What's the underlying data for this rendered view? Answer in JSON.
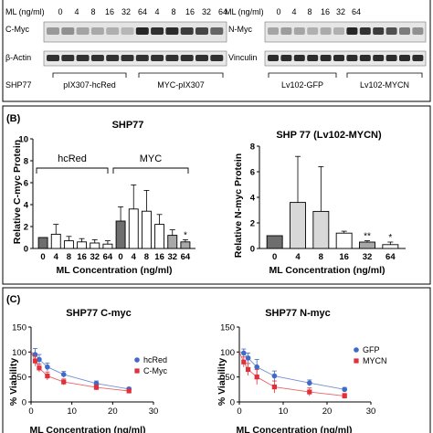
{
  "panels": {
    "A": {
      "left_blot": {
        "concentration_label": "ML (ng/ml)",
        "concentrations": [
          "0",
          "4",
          "8",
          "16",
          "32",
          "64"
        ],
        "rows": [
          "C-Myc",
          "β-Actin"
        ],
        "cell_line": "SHP77",
        "groups": [
          "pIX307-hcRed",
          "MYC-pIX307"
        ]
      },
      "right_blot": {
        "concentration_label": "ML (ng/ml)",
        "concentrations": [
          "0",
          "4",
          "8",
          "16",
          "32",
          "64"
        ],
        "rows": [
          "N-Myc",
          "Vinculin"
        ],
        "groups": [
          "Lv102-GFP",
          "Lv102-MYCN"
        ]
      }
    },
    "B": {
      "label": "(B)",
      "left_brackets": [
        "hcRed",
        "MYC"
      ],
      "right_title": "SHP 77 (Lv102-MYCN)"
    },
    "C": {
      "label": "(C)"
    }
  },
  "colors": {
    "bar_white": "#ffffff",
    "bar_light_gray": "#d8d8d8",
    "bar_mid_gray": "#a8a8a8",
    "bar_dark_gray": "#6e6e6e",
    "blue": "#4169c8",
    "red": "#e0303a"
  },
  "chart_data": [
    {
      "type": "bar",
      "title": "SHP77",
      "xlabel": "ML Concentration (ng/ml)",
      "ylabel": "Relative C-myc Protein",
      "ylim": [
        0,
        10
      ],
      "yticks": [
        0,
        2,
        4,
        6,
        8,
        10
      ],
      "categories": [
        "0",
        "4",
        "8",
        "16",
        "32",
        "64",
        "0",
        "4",
        "8",
        "16",
        "32",
        "64"
      ],
      "values": [
        1.0,
        1.3,
        0.7,
        0.6,
        0.5,
        0.4,
        2.5,
        3.6,
        3.4,
        2.2,
        1.2,
        0.6
      ],
      "errors": [
        0,
        0.9,
        0.4,
        0.3,
        0.3,
        0.3,
        1.3,
        2.2,
        1.9,
        0.9,
        0.5,
        0.2
      ],
      "annotations": [
        {
          "bar_index": 11,
          "text": "*"
        }
      ]
    },
    {
      "type": "bar",
      "title": "SHP 77 (Lv102-MYCN)",
      "xlabel": "ML Concentration (ng/ml)",
      "ylabel": "Relative N-myc Protein",
      "ylim": [
        0,
        8
      ],
      "yticks": [
        0,
        2,
        4,
        6,
        8
      ],
      "categories": [
        "0",
        "4",
        "8",
        "16",
        "32",
        "64"
      ],
      "values": [
        1.0,
        3.6,
        2.9,
        1.2,
        0.5,
        0.3
      ],
      "errors": [
        0,
        3.6,
        3.5,
        0.15,
        0.1,
        0.2
      ],
      "annotations": [
        {
          "bar_index": 4,
          "text": "**"
        },
        {
          "bar_index": 5,
          "text": "*"
        }
      ]
    },
    {
      "type": "scatter",
      "title": "SHP77 C-myc",
      "xlabel": "ML Concentration (ng/ml)",
      "ylabel": "% Viability",
      "xlim": [
        0,
        30
      ],
      "ylim": [
        0,
        150
      ],
      "xticks": [
        0,
        10,
        20,
        30
      ],
      "yticks": [
        0,
        50,
        100,
        150
      ],
      "legend_position": "right",
      "series": [
        {
          "name": "hcRed",
          "x": [
            1,
            2,
            4,
            8,
            16,
            24
          ],
          "y": [
            95,
            85,
            70,
            55,
            37,
            26
          ],
          "err": [
            12,
            10,
            8,
            6,
            5,
            3
          ]
        },
        {
          "name": "C-Myc",
          "x": [
            1,
            2,
            4,
            8,
            16,
            24
          ],
          "y": [
            82,
            68,
            52,
            40,
            29,
            22
          ],
          "err": [
            10,
            8,
            8,
            6,
            5,
            3
          ]
        }
      ]
    },
    {
      "type": "scatter",
      "title": "SHP77 N-myc",
      "xlabel": "ML Concentration (ng/ml)",
      "ylabel": "% Viability",
      "xlim": [
        0,
        30
      ],
      "ylim": [
        0,
        150
      ],
      "xticks": [
        0,
        10,
        20,
        30
      ],
      "yticks": [
        0,
        50,
        100,
        150
      ],
      "legend_position": "right",
      "series": [
        {
          "name": "GFP",
          "x": [
            1,
            2,
            4,
            8,
            16,
            24
          ],
          "y": [
            98,
            88,
            70,
            52,
            38,
            25
          ],
          "err": [
            8,
            10,
            15,
            10,
            6,
            4
          ]
        },
        {
          "name": "MYCN",
          "x": [
            1,
            2,
            4,
            8,
            16,
            24
          ],
          "y": [
            80,
            65,
            50,
            30,
            20,
            12
          ],
          "err": [
            10,
            12,
            15,
            12,
            8,
            5
          ]
        }
      ]
    }
  ]
}
